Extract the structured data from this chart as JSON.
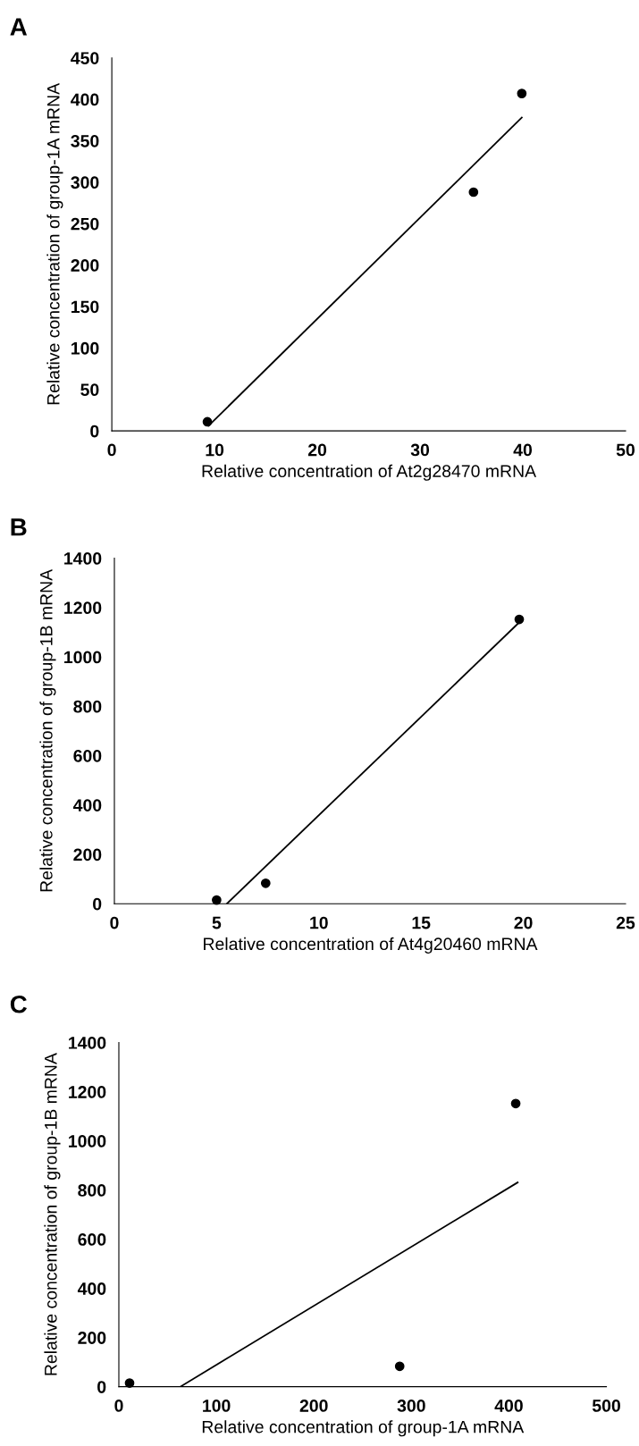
{
  "chart_data": [
    {
      "type": "scatter",
      "title": "A",
      "xlabel": "Relative concentration of At2g28470 mRNA",
      "ylabel": "Relative concentration of group-1A mRNA",
      "xlim": [
        0,
        50
      ],
      "xticks": [
        0,
        10,
        20,
        30,
        40,
        50
      ],
      "ylim": [
        0,
        450
      ],
      "yticks": [
        0,
        50,
        100,
        150,
        200,
        250,
        300,
        350,
        400,
        450
      ],
      "grid": false,
      "legend": false,
      "series": [
        {
          "type": "scatter",
          "color": "#000000",
          "marker": "circle",
          "x": [
            9.3,
            35.2,
            39.9
          ],
          "values": [
            11,
            288,
            407
          ]
        },
        {
          "type": "line",
          "color": "#000000",
          "marker": "none",
          "line_style": "solid",
          "x": [
            9.4,
            39.9
          ],
          "values": [
            6,
            378
          ]
        }
      ]
    },
    {
      "type": "scatter",
      "title": "B",
      "xlabel": "Relative concentration of At4g20460 mRNA",
      "ylabel": "Relative concentration of group-1B mRNA",
      "xlim": [
        0,
        25
      ],
      "xticks": [
        0,
        5,
        10,
        15,
        20,
        25
      ],
      "ylim": [
        0,
        1400
      ],
      "yticks": [
        0,
        200,
        400,
        600,
        800,
        1000,
        1200,
        1400
      ],
      "grid": false,
      "legend": false,
      "series": [
        {
          "type": "scatter",
          "color": "#000000",
          "marker": "circle",
          "x": [
            5.0,
            7.4,
            19.8
          ],
          "values": [
            15,
            83,
            1152
          ]
        },
        {
          "type": "line",
          "color": "#000000",
          "marker": "none",
          "line_style": "solid",
          "x": [
            5.5,
            19.8
          ],
          "values": [
            0,
            1140
          ]
        }
      ]
    },
    {
      "type": "scatter",
      "title": "C",
      "xlabel": "Relative concentration of group-1A mRNA",
      "ylabel": "Relative concentration of group-1B mRNA",
      "xlim": [
        0,
        500
      ],
      "xticks": [
        0,
        100,
        200,
        300,
        400,
        500
      ],
      "ylim": [
        0,
        1400
      ],
      "yticks": [
        0,
        200,
        400,
        600,
        800,
        1000,
        1200,
        1400
      ],
      "grid": false,
      "legend": false,
      "series": [
        {
          "type": "scatter",
          "color": "#000000",
          "marker": "circle",
          "x": [
            11,
            288,
            407
          ],
          "values": [
            15,
            83,
            1152
          ]
        },
        {
          "type": "line",
          "color": "#000000",
          "marker": "none",
          "line_style": "solid",
          "x": [
            63,
            409
          ],
          "values": [
            0,
            831
          ]
        }
      ]
    }
  ]
}
